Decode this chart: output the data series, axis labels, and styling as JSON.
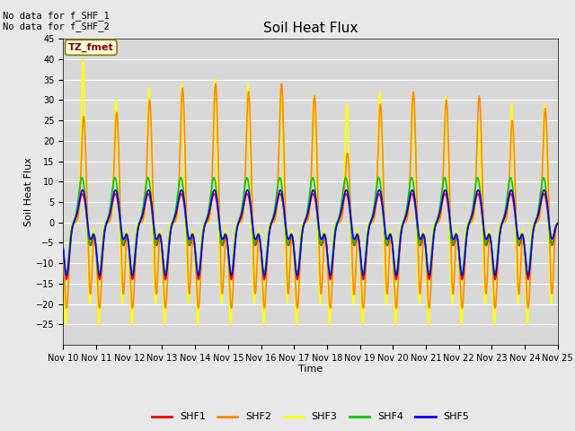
{
  "title": "Soil Heat Flux",
  "xlabel": "Time",
  "ylabel": "Soil Heat Flux",
  "ylim": [
    -30,
    45
  ],
  "yticks": [
    -25,
    -20,
    -15,
    -10,
    -5,
    0,
    5,
    10,
    15,
    20,
    25,
    30,
    35,
    40,
    45
  ],
  "xtick_labels": [
    "Nov 10",
    "Nov 11",
    "Nov 12",
    "Nov 13",
    "Nov 14",
    "Nov 15",
    "Nov 16",
    "Nov 17",
    "Nov 18",
    "Nov 19",
    "Nov 20",
    "Nov 21",
    "Nov 22",
    "Nov 23",
    "Nov 24",
    "Nov 25"
  ],
  "no_data_text1": "No data for f_SHF_1",
  "no_data_text2": "No data for f_SHF_2",
  "tz_label": "TZ_fmet",
  "series_colors": {
    "SHF1": "#ff0000",
    "SHF2": "#ff8800",
    "SHF3": "#ffff00",
    "SHF4": "#00cc00",
    "SHF5": "#0000ff"
  },
  "shf3_peaks": [
    40,
    30,
    33,
    34,
    35,
    34,
    33,
    31,
    29,
    32,
    32,
    31,
    25,
    29,
    29
  ],
  "shf2_peaks": [
    26,
    27,
    30,
    33,
    34,
    32,
    34,
    31,
    17,
    29,
    32,
    30,
    31,
    25,
    28
  ],
  "background_color": "#e8e8e8",
  "plot_bg_color": "#d8d8d8",
  "title_fontsize": 11,
  "label_fontsize": 8,
  "tick_fontsize": 7,
  "n_days": 15,
  "points_per_day": 144
}
